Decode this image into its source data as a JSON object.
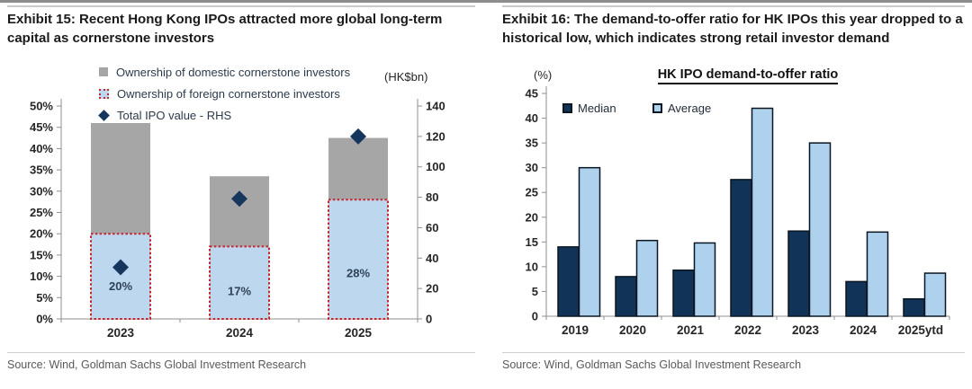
{
  "panels": {
    "left": {
      "exhibit_title": "Exhibit 15: Recent Hong Kong IPOs attracted more global long-term capital as cornerstone investors",
      "source": "Source: Wind, Goldman Sachs Global Investment Research"
    },
    "right": {
      "exhibit_title": "Exhibit 16: The demand-to-offer ratio for HK IPOs this year dropped to a historical low, which indicates strong retail investor demand",
      "source": "Source: Wind, Goldman Sachs Global Investment Research"
    }
  },
  "chart_data": [
    {
      "type": "bar",
      "subtype": "stacked-bars-with-scatter-dual-axis",
      "categories": [
        "2023",
        "2024",
        "2025"
      ],
      "series": [
        {
          "name": "Ownership of domestic cornerstone investors",
          "axis": "left",
          "role": "stack-top",
          "color": "#a6a6a6",
          "values": [
            26,
            16.5,
            14.5
          ]
        },
        {
          "name": "Ownership of foreign cornerstone investors",
          "axis": "left",
          "role": "stack-bottom",
          "color": "#bdd7ee",
          "border": "#c2262e",
          "values": [
            20,
            17,
            28
          ],
          "labels": [
            "20%",
            "17%",
            "28%"
          ]
        },
        {
          "name": "Total IPO value - RHS",
          "axis": "right",
          "role": "scatter-diamond",
          "color": "#17365d",
          "values": [
            34,
            79,
            120
          ]
        }
      ],
      "stack_total_pct": [
        46,
        33.5,
        42.5
      ],
      "left_axis": {
        "min": 0,
        "max": 50,
        "step": 5,
        "unit": "%",
        "ticks": [
          "50%",
          "45%",
          "40%",
          "35%",
          "30%",
          "25%",
          "20%",
          "15%",
          "10%",
          "5%",
          "0%"
        ]
      },
      "right_axis": {
        "min": 0,
        "max": 140,
        "step": 20,
        "title": "(HK$bn)",
        "ticks": [
          "140",
          "120",
          "100",
          "80",
          "60",
          "40",
          "20",
          "0"
        ]
      },
      "legend_position": "top-left",
      "grid": false
    },
    {
      "type": "bar",
      "subtype": "grouped",
      "title": "HK IPO demand-to-offer ratio",
      "unit_label": "(%)",
      "categories": [
        "2019",
        "2020",
        "2021",
        "2022",
        "2023",
        "2024",
        "2025ytd"
      ],
      "series": [
        {
          "name": "Median",
          "color": "#123358",
          "border": "#0b1623",
          "values": [
            14,
            8,
            9.3,
            27.6,
            17.2,
            7,
            3.5
          ]
        },
        {
          "name": "Average",
          "color": "#aed2ed",
          "border": "#0b1623",
          "values": [
            30,
            15.3,
            14.8,
            42,
            35,
            17,
            8.7
          ]
        }
      ],
      "y_axis": {
        "min": 0,
        "max": 45,
        "step": 5,
        "ticks": [
          "45",
          "40",
          "35",
          "30",
          "25",
          "20",
          "15",
          "10",
          "5",
          "0"
        ]
      },
      "legend_position": "top-left",
      "grid": false
    }
  ],
  "colors": {
    "bar_gray": "#a6a6a6",
    "bar_lightblue": "#bdd7ee",
    "dotted_red_border": "#c2262e",
    "diamond_navy": "#17365d",
    "median_navy": "#123358",
    "average_blue": "#aed2ed",
    "axis_gray": "#8f8f8f",
    "source_text": "#595959"
  }
}
